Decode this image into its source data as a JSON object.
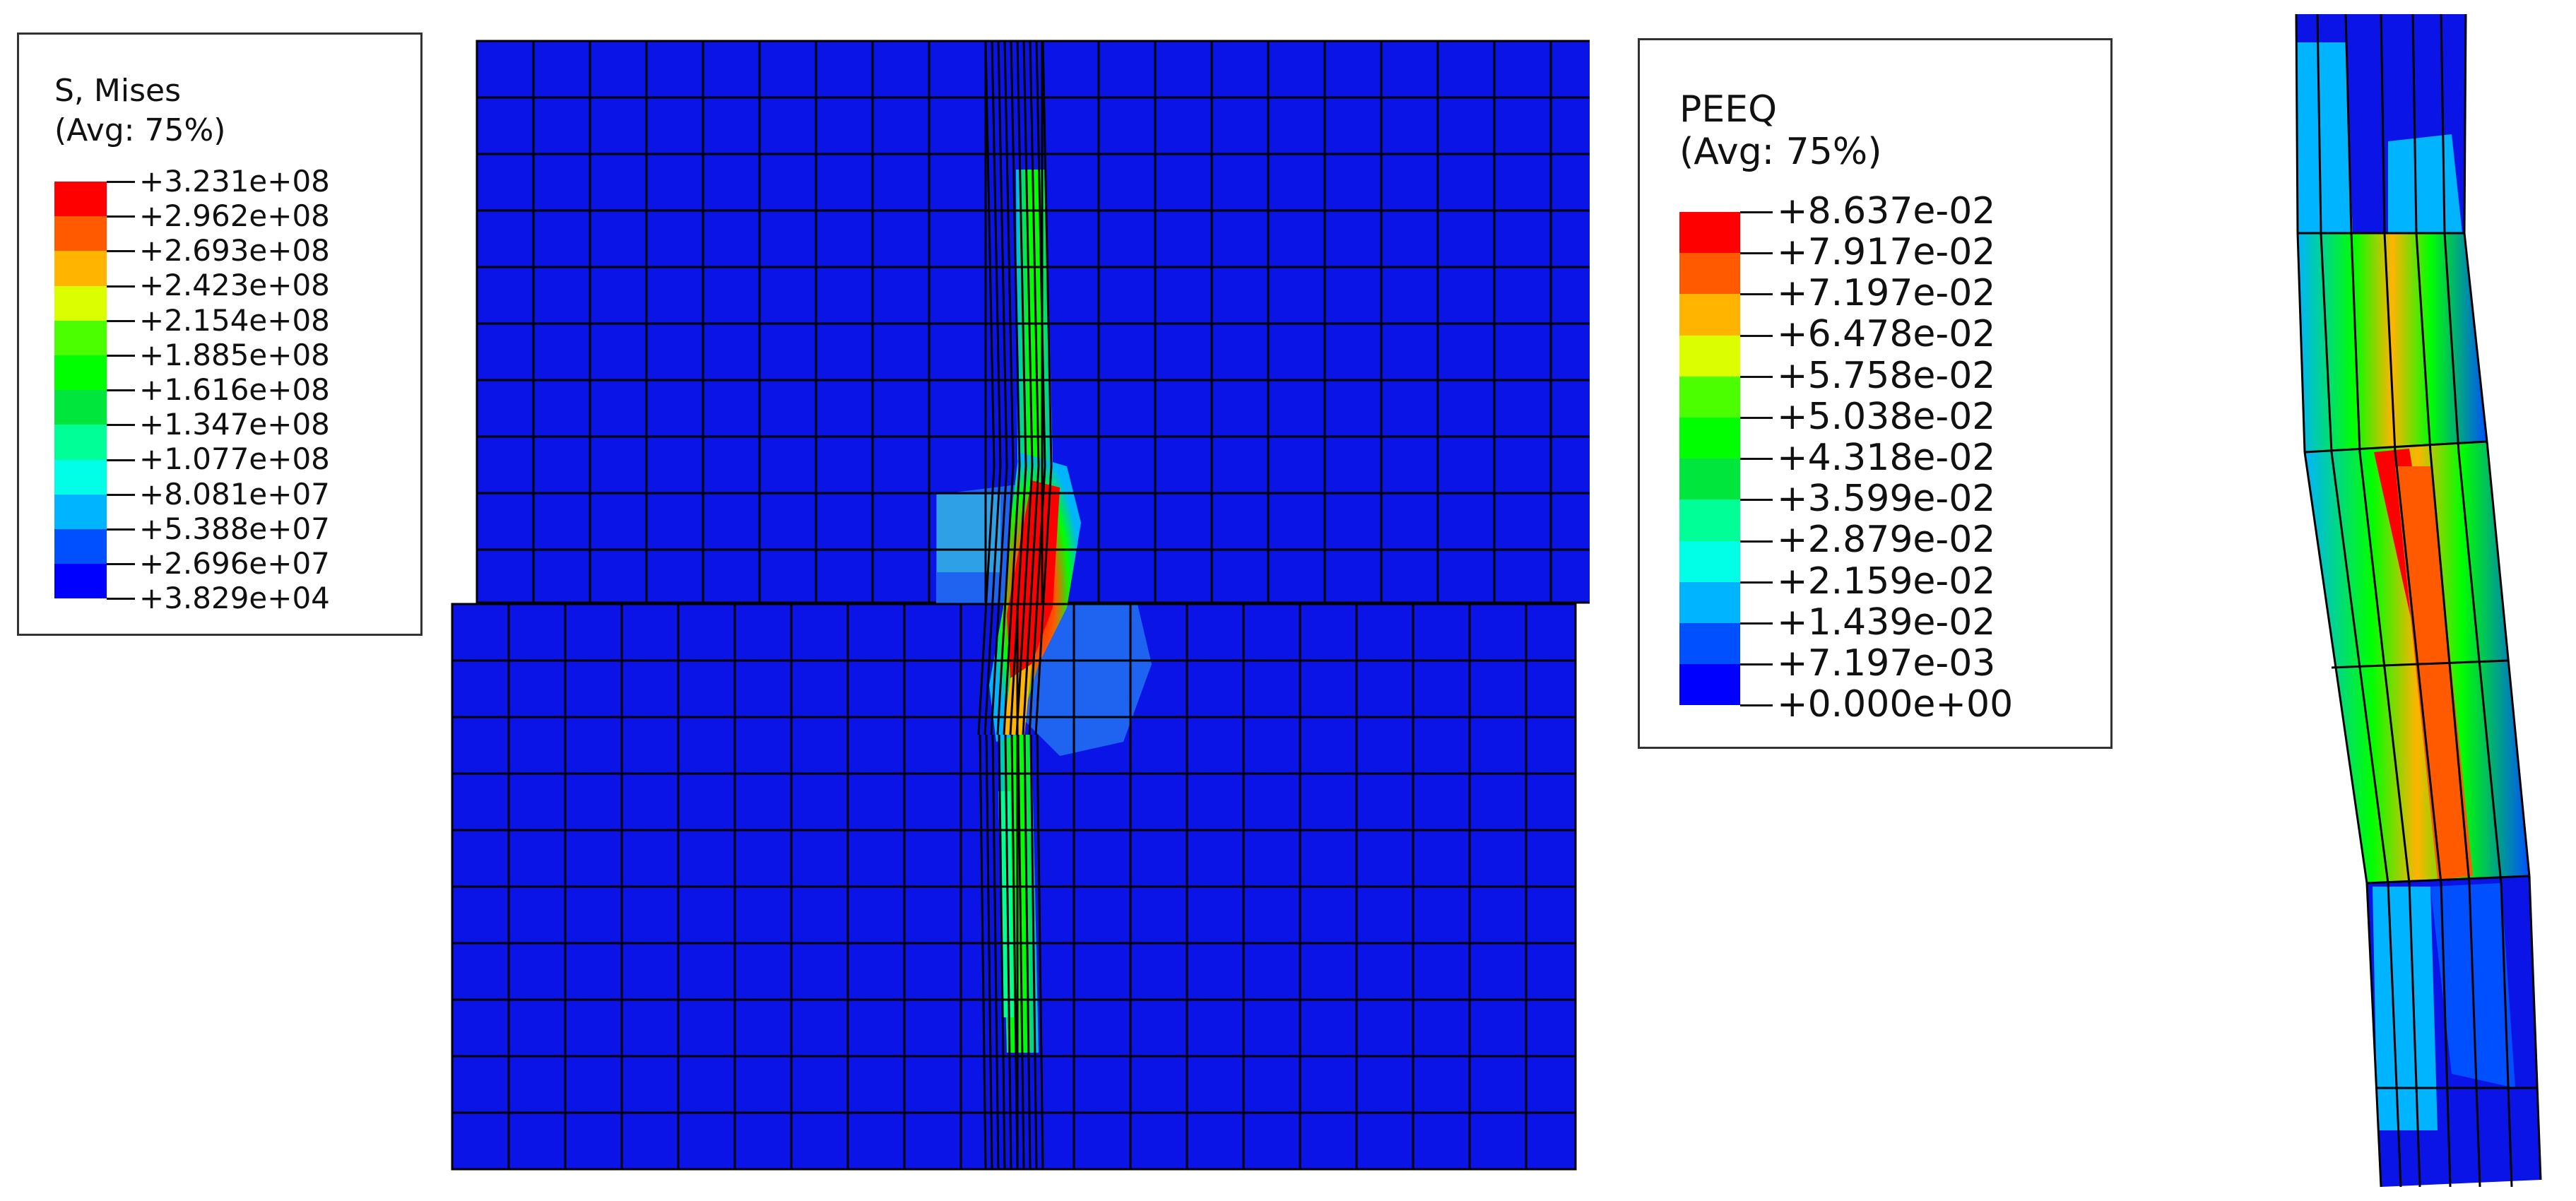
{
  "mises_legend": {
    "title": "S, Mises",
    "subtitle": "(Avg: 75%)",
    "colors": [
      "#ff0000",
      "#ff5a00",
      "#ffb400",
      "#dcff00",
      "#4bff00",
      "#00ff00",
      "#00e63c",
      "#00ff96",
      "#00ffe6",
      "#00b4ff",
      "#0050ff",
      "#0000ff"
    ],
    "values": [
      "+3.231e+08",
      "+2.962e+08",
      "+2.693e+08",
      "+2.423e+08",
      "+2.154e+08",
      "+1.885e+08",
      "+1.616e+08",
      "+1.347e+08",
      "+1.077e+08",
      "+8.081e+07",
      "+5.388e+07",
      "+2.696e+07",
      "+3.829e+04"
    ]
  },
  "peeq_legend": {
    "title": "PEEQ",
    "subtitle": "(Avg: 75%)",
    "colors": [
      "#ff0000",
      "#ff5a00",
      "#ffb400",
      "#dcff00",
      "#4bff00",
      "#00ff00",
      "#00e63c",
      "#00ff96",
      "#00ffe6",
      "#00b4ff",
      "#0050ff",
      "#0000ff"
    ],
    "values": [
      "+8.637e-02",
      "+7.917e-02",
      "+7.197e-02",
      "+6.478e-02",
      "+5.758e-02",
      "+5.038e-02",
      "+4.318e-02",
      "+3.599e-02",
      "+2.879e-02",
      "+2.159e-02",
      "+1.439e-02",
      "+7.197e-03",
      "+0.000e+00"
    ]
  },
  "colors": {
    "background_blue": "#0a14e6",
    "mesh_line": "#000000"
  }
}
